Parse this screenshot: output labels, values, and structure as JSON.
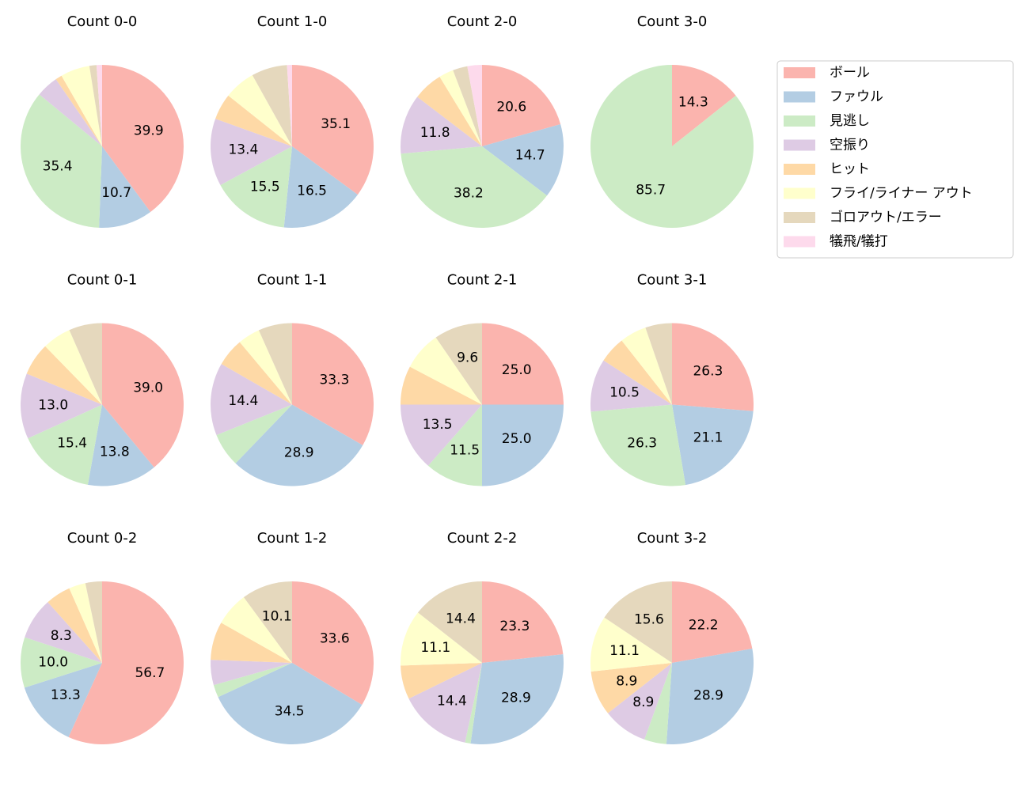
{
  "chart_data": [
    {
      "type": "pie",
      "title": "Count 0-0",
      "values": [
        39.9,
        10.7,
        35.4,
        4.4,
        1.3,
        5.8,
        1.4,
        1.1
      ],
      "value_labels": [
        "39.9",
        "10.7",
        "35.4",
        null,
        null,
        null,
        null,
        null
      ]
    },
    {
      "type": "pie",
      "title": "Count 1-0",
      "values": [
        35.1,
        16.5,
        15.5,
        13.4,
        5.2,
        6.2,
        7.1,
        1.0
      ],
      "value_labels": [
        "35.1",
        "16.5",
        "15.5",
        "13.4",
        null,
        null,
        null,
        null
      ]
    },
    {
      "type": "pie",
      "title": "Count 2-0",
      "values": [
        20.6,
        14.7,
        38.2,
        11.8,
        5.9,
        2.9,
        2.9,
        2.9
      ],
      "value_labels": [
        "20.6",
        "14.7",
        "38.2",
        "11.8",
        null,
        null,
        null,
        null
      ]
    },
    {
      "type": "pie",
      "title": "Count 3-0",
      "values": [
        14.3,
        0,
        85.7,
        0,
        0,
        0,
        0,
        0
      ],
      "value_labels": [
        "14.3",
        null,
        "85.7",
        null,
        null,
        null,
        null,
        null
      ]
    },
    {
      "type": "pie",
      "title": "Count 0-1",
      "values": [
        39.0,
        13.8,
        15.4,
        13.0,
        6.5,
        5.7,
        6.6,
        0
      ],
      "value_labels": [
        "39.0",
        "13.8",
        "15.4",
        "13.0",
        null,
        null,
        null,
        null
      ]
    },
    {
      "type": "pie",
      "title": "Count 1-1",
      "values": [
        33.3,
        28.9,
        6.7,
        14.4,
        5.6,
        4.4,
        6.7,
        0
      ],
      "value_labels": [
        "33.3",
        "28.9",
        null,
        "14.4",
        null,
        null,
        null,
        null
      ]
    },
    {
      "type": "pie",
      "title": "Count 2-1",
      "values": [
        25.0,
        25.0,
        11.5,
        13.5,
        7.7,
        7.7,
        9.6,
        0
      ],
      "value_labels": [
        "25.0",
        "25.0",
        "11.5",
        "13.5",
        null,
        null,
        "9.6",
        null
      ]
    },
    {
      "type": "pie",
      "title": "Count 3-1",
      "values": [
        26.3,
        21.1,
        26.3,
        10.5,
        5.3,
        5.3,
        5.3,
        0
      ],
      "value_labels": [
        "26.3",
        "21.1",
        "26.3",
        "10.5",
        null,
        null,
        null,
        null
      ]
    },
    {
      "type": "pie",
      "title": "Count 0-2",
      "values": [
        56.7,
        13.3,
        10.0,
        8.3,
        5.0,
        3.3,
        3.3,
        0
      ],
      "value_labels": [
        "56.7",
        "13.3",
        "10.0",
        "8.3",
        null,
        null,
        null,
        null
      ]
    },
    {
      "type": "pie",
      "title": "Count 1-2",
      "values": [
        33.6,
        34.5,
        2.5,
        5.0,
        7.6,
        6.7,
        10.1,
        0
      ],
      "value_labels": [
        "33.6",
        "34.5",
        null,
        null,
        null,
        null,
        "10.1",
        null
      ]
    },
    {
      "type": "pie",
      "title": "Count 2-2",
      "values": [
        23.3,
        28.9,
        1.1,
        14.4,
        6.7,
        11.1,
        14.4,
        0
      ],
      "value_labels": [
        "23.3",
        "28.9",
        null,
        "14.4",
        null,
        "11.1",
        "14.4",
        null
      ]
    },
    {
      "type": "pie",
      "title": "Count 3-2",
      "values": [
        22.2,
        28.9,
        4.4,
        8.9,
        8.9,
        11.1,
        15.6,
        0
      ],
      "value_labels": [
        "22.2",
        "28.9",
        null,
        "8.9",
        "8.9",
        "11.1",
        "15.6",
        null
      ]
    }
  ],
  "legend": {
    "labels": [
      "ボール",
      "ファウル",
      "見逃し",
      "空振り",
      "ヒット",
      "フライ/ライナー アウト",
      "ゴロアウト/エラー",
      "犠飛/犠打"
    ],
    "colors": [
      "#fbb4ae",
      "#b3cde3",
      "#ccebc5",
      "#decbe4",
      "#fed9a6",
      "#ffffcc",
      "#e5d8bd",
      "#fddaec"
    ]
  }
}
